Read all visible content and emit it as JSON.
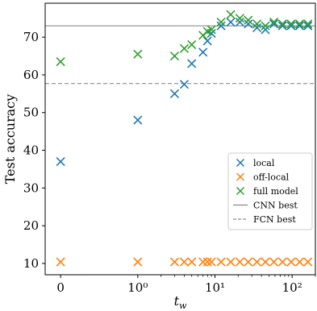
{
  "chart_data": {
    "type": "scatter",
    "xscale": "symlog",
    "xlabel": "t_w",
    "ylabel": "Test accuracy",
    "xlim": [
      -0.2,
      200
    ],
    "ylim": [
      7,
      79
    ],
    "grid": false,
    "legend_position": "lower right",
    "xticks": [
      {
        "value": 0,
        "label": "0"
      },
      {
        "value": 1,
        "label": "10⁰"
      },
      {
        "value": 10,
        "label": "10¹"
      },
      {
        "value": 100,
        "label": "10²"
      }
    ],
    "yticks": [
      10,
      20,
      30,
      40,
      50,
      60,
      70
    ],
    "series": [
      {
        "name": "local",
        "color": "#1f77b4",
        "marker": "x",
        "x": [
          0,
          1,
          3,
          4,
          5,
          7,
          8,
          9,
          12,
          16,
          21,
          27,
          35,
          45,
          58,
          75,
          97,
          125,
          160
        ],
        "y": [
          37,
          48,
          55,
          57.5,
          63,
          66,
          69,
          71,
          73,
          74,
          74,
          73.5,
          72.5,
          72,
          73.5,
          73,
          73,
          73,
          73
        ]
      },
      {
        "name": "off-local",
        "color": "#ff7f0e",
        "marker": "x",
        "x": [
          0,
          1,
          3,
          4,
          5,
          7,
          8,
          9,
          12,
          16,
          21,
          27,
          35,
          45,
          58,
          75,
          97,
          125,
          160
        ],
        "y": [
          10.4,
          10.4,
          10.4,
          10.4,
          10.4,
          10.4,
          10.4,
          10.4,
          10.4,
          10.4,
          10.4,
          10.4,
          10.4,
          10.4,
          10.4,
          10.4,
          10.4,
          10.4,
          10.4
        ]
      },
      {
        "name": "full model",
        "color": "#2ca02c",
        "marker": "x",
        "x": [
          0,
          1,
          3,
          4,
          5,
          7,
          8,
          9,
          12,
          16,
          21,
          27,
          35,
          45,
          58,
          75,
          97,
          125,
          160
        ],
        "y": [
          63.5,
          65.5,
          65,
          67,
          68,
          70.5,
          71.5,
          72,
          74,
          76,
          75,
          74.5,
          73.5,
          73,
          74,
          73.5,
          73.5,
          73.5,
          73.5
        ]
      }
    ],
    "reference_lines": [
      {
        "name": "CNN best",
        "y": 73,
        "color": "#8c8c8c",
        "style": "solid"
      },
      {
        "name": "FCN best",
        "y": 57.7,
        "color": "#8c8c8c",
        "style": "dashed"
      }
    ]
  }
}
